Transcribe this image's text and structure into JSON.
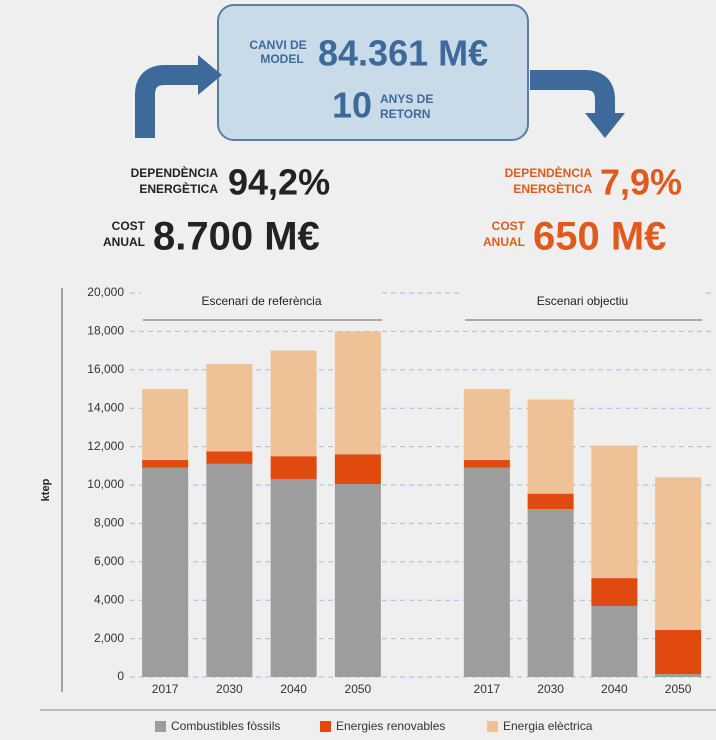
{
  "header": {
    "label_lines": [
      "CANVI DE",
      "MODEL"
    ],
    "value": "84.361 M€",
    "years": "10",
    "years_lines": [
      "ANYS DE",
      "RETORN"
    ]
  },
  "current": {
    "dependence_lines": [
      "DEPENDÈNCIA",
      "ENERGÈTICA"
    ],
    "dependence": "94,2%",
    "cost_lines": [
      "COST",
      "ANUAL"
    ],
    "cost": "8.700 M€"
  },
  "target": {
    "dependence_lines": [
      "DEPENDÈNCIA",
      "ENERGÈTICA"
    ],
    "dependence": "7,9%",
    "cost_lines": [
      "COST",
      "ANUAL"
    ],
    "cost": "650 M€"
  },
  "chart_data": {
    "type": "bar",
    "stacked": true,
    "ylabel": "ktep",
    "panel_titles": [
      "Escenari de referència",
      "Escenari objectiu"
    ],
    "categories": [
      "2017",
      "2030",
      "2040",
      "2050",
      "2017",
      "2030",
      "2040",
      "2050"
    ],
    "series": [
      {
        "name": "Combustibles fòssils",
        "color": "#9d9d9d",
        "values": [
          10900,
          11100,
          10300,
          10050,
          10900,
          8750,
          3700,
          150
        ]
      },
      {
        "name": "Energies renovables",
        "color": "#e04a0f",
        "values": [
          400,
          650,
          1200,
          1550,
          400,
          800,
          1450,
          2300
        ]
      },
      {
        "name": "Energia elèctrica",
        "color": "#eec197",
        "values": [
          3700,
          4550,
          5500,
          6400,
          3700,
          4900,
          6900,
          7950
        ]
      }
    ],
    "ylim": [
      0,
      20000
    ],
    "yticks": [
      0,
      {
        "value": 2000,
        "label": "2,000"
      },
      {
        "value": 4000,
        "label": "4,000"
      },
      {
        "value": 6000,
        "label": "6,000"
      },
      {
        "value": 8000,
        "label": "8,000"
      },
      {
        "value": 10000,
        "label": "10,000"
      },
      {
        "value": 12000,
        "label": "12,000"
      },
      {
        "value": 14000,
        "label": "14,000"
      },
      {
        "value": 16000,
        "label": "16,000"
      },
      {
        "value": 18000,
        "label": "18,000"
      },
      {
        "value": 20000,
        "label": "20,000"
      }
    ],
    "grid": true
  }
}
